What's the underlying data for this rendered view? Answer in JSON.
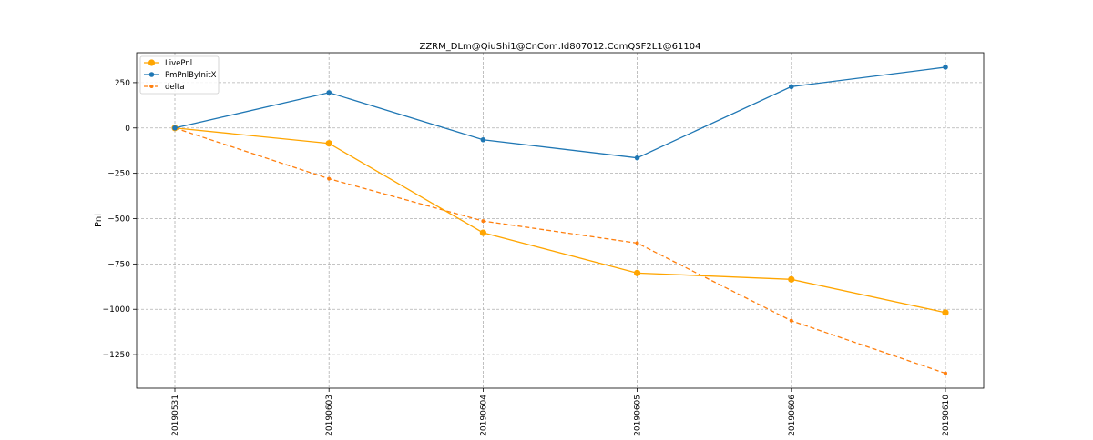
{
  "chart_data": {
    "type": "line",
    "title": "ZZRM_DLm@QiuShi1@CnCom.Id807012.ComQSF2L1@61104",
    "xlabel": "",
    "ylabel": "Pnl",
    "categories": [
      "20190531",
      "20190603",
      "20190604",
      "20190605",
      "20190606",
      "20190610"
    ],
    "ylim": [
      -1435,
      415
    ],
    "yticks": [
      250,
      0,
      -250,
      -500,
      -750,
      -1000,
      -1250
    ],
    "ytick_labels": [
      "250",
      "0",
      "−250",
      "−500",
      "−750",
      "−1000",
      "−1250"
    ],
    "grid": true,
    "legend_position": "upper-left",
    "series": [
      {
        "name": "LivePnl",
        "color": "#ffa500",
        "line_style": "solid",
        "marker": "large-dot",
        "values": [
          0,
          -85,
          -578,
          -800,
          -835,
          -1018
        ]
      },
      {
        "name": "PmPnlByInitX",
        "color": "#1f77b4",
        "line_style": "solid",
        "marker": "dot",
        "values": [
          0,
          195,
          -65,
          -165,
          228,
          335
        ]
      },
      {
        "name": "delta",
        "color": "#ff7f0e",
        "line_style": "dashed",
        "marker": "small-dot",
        "values": [
          0,
          -280,
          -513,
          -635,
          -1063,
          -1353
        ]
      }
    ]
  }
}
